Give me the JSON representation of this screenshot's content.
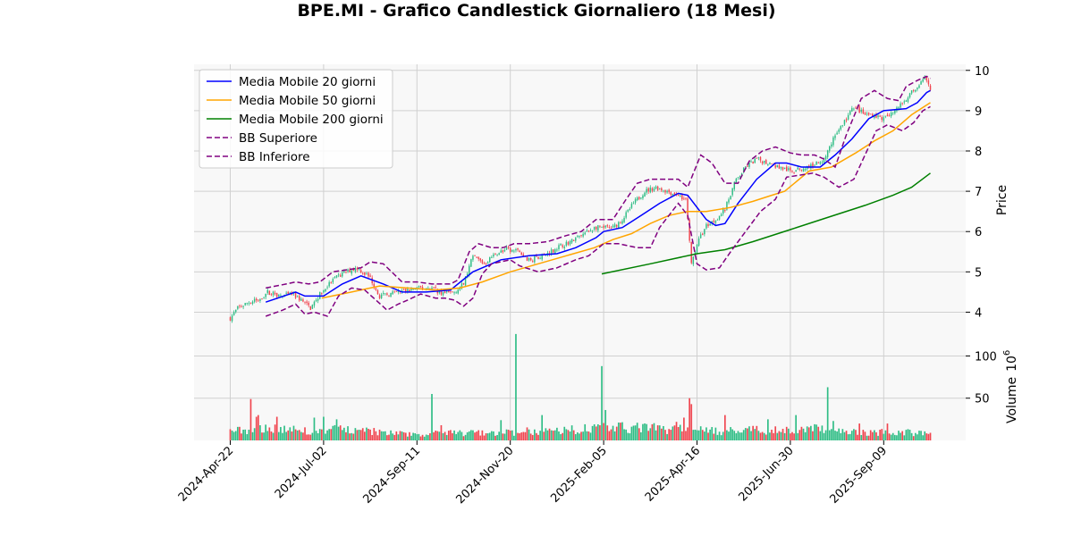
{
  "chart_data": {
    "type": "candlestick",
    "title": "BPE.MI - Grafico Candlestick Giornaliero (18 Mesi)",
    "ylabel": "Price",
    "volume_label": "Volume",
    "volume_exponent_label": "10",
    "volume_exponent_power": "6",
    "ylim": [
      3.5,
      10.15
    ],
    "volume_ylim": [
      0,
      128
    ],
    "price_ticks": [
      "4",
      "5",
      "6",
      "7",
      "8",
      "9",
      "10"
    ],
    "volume_ticks": [
      "50",
      "100"
    ],
    "x_ticks": [
      "2024-Apr-22",
      "2024-Jul-02",
      "2024-Sep-11",
      "2024-Nov-20",
      "2025-Feb-05",
      "2025-Apr-16",
      "2025-Jun-30",
      "2025-Sep-09"
    ],
    "x_tick_index": [
      0,
      50,
      100,
      150,
      200,
      250,
      300,
      350
    ],
    "n_days": 375,
    "grid": true,
    "legend_position": "top-left",
    "up_color": "#2ebd85",
    "down_color": "#f0454f",
    "series": [
      {
        "name": "Media Mobile 20 giorni",
        "color": "#0000ff",
        "style": "solid",
        "start": 19,
        "points": [
          [
            19,
            4.25
          ],
          [
            35,
            4.5
          ],
          [
            40,
            4.4
          ],
          [
            50,
            4.4
          ],
          [
            60,
            4.7
          ],
          [
            70,
            4.9
          ],
          [
            82,
            4.7
          ],
          [
            92,
            4.5
          ],
          [
            105,
            4.5
          ],
          [
            118,
            4.55
          ],
          [
            130,
            5.0
          ],
          [
            145,
            5.3
          ],
          [
            160,
            5.4
          ],
          [
            175,
            5.45
          ],
          [
            185,
            5.6
          ],
          [
            196,
            5.85
          ],
          [
            200,
            6.0
          ],
          [
            210,
            6.1
          ],
          [
            220,
            6.4
          ],
          [
            230,
            6.7
          ],
          [
            240,
            6.95
          ],
          [
            245,
            6.9
          ],
          [
            255,
            6.3
          ],
          [
            260,
            6.15
          ],
          [
            265,
            6.2
          ],
          [
            272,
            6.7
          ],
          [
            282,
            7.3
          ],
          [
            292,
            7.7
          ],
          [
            298,
            7.7
          ],
          [
            306,
            7.6
          ],
          [
            316,
            7.6
          ],
          [
            324,
            7.9
          ],
          [
            333,
            8.3
          ],
          [
            342,
            8.8
          ],
          [
            350,
            9.0
          ],
          [
            362,
            9.05
          ],
          [
            368,
            9.2
          ],
          [
            373,
            9.45
          ],
          [
            375,
            9.5
          ]
        ]
      },
      {
        "name": "Media Mobile 50 giorni",
        "color": "#ffa500",
        "style": "solid",
        "start": 49,
        "points": [
          [
            49,
            4.35
          ],
          [
            65,
            4.5
          ],
          [
            80,
            4.65
          ],
          [
            95,
            4.6
          ],
          [
            110,
            4.55
          ],
          [
            123,
            4.6
          ],
          [
            135,
            4.75
          ],
          [
            150,
            5.0
          ],
          [
            165,
            5.2
          ],
          [
            180,
            5.4
          ],
          [
            195,
            5.6
          ],
          [
            205,
            5.8
          ],
          [
            215,
            5.95
          ],
          [
            225,
            6.2
          ],
          [
            235,
            6.4
          ],
          [
            245,
            6.5
          ],
          [
            255,
            6.5
          ],
          [
            268,
            6.6
          ],
          [
            280,
            6.75
          ],
          [
            290,
            6.9
          ],
          [
            297,
            7.0
          ],
          [
            310,
            7.5
          ],
          [
            322,
            7.6
          ],
          [
            335,
            7.95
          ],
          [
            345,
            8.25
          ],
          [
            355,
            8.5
          ],
          [
            365,
            8.9
          ],
          [
            375,
            9.2
          ]
        ]
      },
      {
        "name": "Media Mobile 200 giorni",
        "color": "#008000",
        "style": "solid",
        "start": 199,
        "points": [
          [
            199,
            4.95
          ],
          [
            225,
            5.2
          ],
          [
            250,
            5.45
          ],
          [
            265,
            5.55
          ],
          [
            280,
            5.75
          ],
          [
            300,
            6.05
          ],
          [
            320,
            6.35
          ],
          [
            340,
            6.65
          ],
          [
            355,
            6.9
          ],
          [
            365,
            7.1
          ],
          [
            375,
            7.45
          ]
        ]
      },
      {
        "name": "BB Superiore",
        "color": "#800080",
        "style": "dashed",
        "start": 19,
        "points": [
          [
            19,
            4.6
          ],
          [
            30,
            4.7
          ],
          [
            35,
            4.75
          ],
          [
            42,
            4.7
          ],
          [
            48,
            4.75
          ],
          [
            55,
            5.0
          ],
          [
            62,
            5.05
          ],
          [
            70,
            5.1
          ],
          [
            75,
            5.25
          ],
          [
            82,
            5.2
          ],
          [
            92,
            4.75
          ],
          [
            100,
            4.75
          ],
          [
            108,
            4.7
          ],
          [
            118,
            4.7
          ],
          [
            122,
            4.8
          ],
          [
            128,
            5.5
          ],
          [
            133,
            5.7
          ],
          [
            140,
            5.6
          ],
          [
            146,
            5.6
          ],
          [
            152,
            5.7
          ],
          [
            160,
            5.7
          ],
          [
            170,
            5.75
          ],
          [
            180,
            5.9
          ],
          [
            188,
            6.0
          ],
          [
            196,
            6.3
          ],
          [
            205,
            6.3
          ],
          [
            212,
            6.8
          ],
          [
            218,
            7.2
          ],
          [
            225,
            7.3
          ],
          [
            230,
            7.3
          ],
          [
            240,
            7.3
          ],
          [
            245,
            7.1
          ],
          [
            252,
            7.9
          ],
          [
            258,
            7.7
          ],
          [
            265,
            7.2
          ],
          [
            272,
            7.2
          ],
          [
            278,
            7.75
          ],
          [
            285,
            8.0
          ],
          [
            292,
            8.1
          ],
          [
            300,
            7.95
          ],
          [
            306,
            7.9
          ],
          [
            313,
            7.9
          ],
          [
            318,
            7.8
          ],
          [
            324,
            7.6
          ],
          [
            330,
            8.4
          ],
          [
            338,
            9.3
          ],
          [
            345,
            9.5
          ],
          [
            352,
            9.3
          ],
          [
            358,
            9.25
          ],
          [
            362,
            9.6
          ],
          [
            368,
            9.75
          ],
          [
            373,
            9.85
          ],
          [
            375,
            9.8
          ]
        ]
      },
      {
        "name": "BB Inferiore",
        "color": "#800080",
        "style": "dashed",
        "start": 19,
        "points": [
          [
            19,
            3.9
          ],
          [
            28,
            4.05
          ],
          [
            35,
            4.2
          ],
          [
            40,
            3.95
          ],
          [
            45,
            4.0
          ],
          [
            52,
            3.9
          ],
          [
            58,
            4.4
          ],
          [
            65,
            4.6
          ],
          [
            72,
            4.55
          ],
          [
            78,
            4.3
          ],
          [
            84,
            4.05
          ],
          [
            90,
            4.2
          ],
          [
            95,
            4.3
          ],
          [
            102,
            4.45
          ],
          [
            110,
            4.35
          ],
          [
            115,
            4.35
          ],
          [
            120,
            4.3
          ],
          [
            125,
            4.15
          ],
          [
            130,
            4.35
          ],
          [
            135,
            4.95
          ],
          [
            140,
            5.2
          ],
          [
            150,
            5.3
          ],
          [
            155,
            5.15
          ],
          [
            165,
            5.0
          ],
          [
            175,
            5.1
          ],
          [
            185,
            5.3
          ],
          [
            192,
            5.4
          ],
          [
            200,
            5.7
          ],
          [
            208,
            5.7
          ],
          [
            218,
            5.6
          ],
          [
            225,
            5.6
          ],
          [
            230,
            6.1
          ],
          [
            240,
            6.7
          ],
          [
            245,
            6.4
          ],
          [
            250,
            5.2
          ],
          [
            255,
            5.05
          ],
          [
            262,
            5.1
          ],
          [
            268,
            5.5
          ],
          [
            276,
            6.0
          ],
          [
            284,
            6.5
          ],
          [
            292,
            6.8
          ],
          [
            298,
            7.35
          ],
          [
            305,
            7.4
          ],
          [
            312,
            7.45
          ],
          [
            318,
            7.35
          ],
          [
            326,
            7.1
          ],
          [
            334,
            7.3
          ],
          [
            340,
            7.9
          ],
          [
            346,
            8.5
          ],
          [
            352,
            8.65
          ],
          [
            360,
            8.5
          ],
          [
            366,
            8.7
          ],
          [
            371,
            9.0
          ],
          [
            375,
            9.1
          ]
        ]
      }
    ],
    "price_anchors": [
      [
        0,
        3.85
      ],
      [
        4,
        4.1
      ],
      [
        10,
        4.25
      ],
      [
        15,
        4.3
      ],
      [
        20,
        4.5
      ],
      [
        28,
        4.4
      ],
      [
        33,
        4.45
      ],
      [
        38,
        4.3
      ],
      [
        43,
        4.1
      ],
      [
        48,
        4.45
      ],
      [
        55,
        4.8
      ],
      [
        62,
        5.0
      ],
      [
        68,
        5.1
      ],
      [
        75,
        4.85
      ],
      [
        80,
        4.4
      ],
      [
        85,
        4.45
      ],
      [
        90,
        4.5
      ],
      [
        96,
        4.55
      ],
      [
        102,
        4.6
      ],
      [
        108,
        4.6
      ],
      [
        114,
        4.45
      ],
      [
        120,
        4.5
      ],
      [
        125,
        4.7
      ],
      [
        130,
        5.4
      ],
      [
        136,
        5.2
      ],
      [
        142,
        5.45
      ],
      [
        148,
        5.55
      ],
      [
        154,
        5.5
      ],
      [
        160,
        5.3
      ],
      [
        168,
        5.4
      ],
      [
        175,
        5.6
      ],
      [
        182,
        5.75
      ],
      [
        188,
        5.9
      ],
      [
        195,
        6.1
      ],
      [
        200,
        6.1
      ],
      [
        205,
        6.1
      ],
      [
        210,
        6.3
      ],
      [
        216,
        6.7
      ],
      [
        222,
        7.0
      ],
      [
        228,
        7.1
      ],
      [
        234,
        7.0
      ],
      [
        240,
        6.9
      ],
      [
        244,
        6.8
      ],
      [
        247,
        5.2
      ],
      [
        250,
        5.7
      ],
      [
        255,
        6.15
      ],
      [
        260,
        6.3
      ],
      [
        265,
        6.55
      ],
      [
        270,
        7.2
      ],
      [
        276,
        7.6
      ],
      [
        282,
        7.8
      ],
      [
        288,
        7.7
      ],
      [
        294,
        7.6
      ],
      [
        300,
        7.5
      ],
      [
        306,
        7.55
      ],
      [
        312,
        7.65
      ],
      [
        318,
        7.8
      ],
      [
        324,
        8.4
      ],
      [
        330,
        8.8
      ],
      [
        334,
        9.1
      ],
      [
        340,
        8.9
      ],
      [
        344,
        8.9
      ],
      [
        350,
        8.8
      ],
      [
        356,
        9.0
      ],
      [
        362,
        9.3
      ],
      [
        368,
        9.6
      ],
      [
        372,
        9.8
      ],
      [
        375,
        9.5
      ]
    ],
    "volume_anchors": [
      [
        0,
        11
      ],
      [
        20,
        14
      ],
      [
        40,
        12
      ],
      [
        60,
        13
      ],
      [
        80,
        10
      ],
      [
        100,
        7
      ],
      [
        120,
        9
      ],
      [
        140,
        8
      ],
      [
        160,
        11
      ],
      [
        180,
        12
      ],
      [
        200,
        15
      ],
      [
        220,
        15
      ],
      [
        240,
        13
      ],
      [
        260,
        11
      ],
      [
        280,
        12
      ],
      [
        300,
        12
      ],
      [
        320,
        14
      ],
      [
        340,
        9
      ],
      [
        360,
        10
      ],
      [
        375,
        8
      ]
    ],
    "volume_spikes": [
      [
        11,
        49
      ],
      [
        14,
        28
      ],
      [
        15,
        30
      ],
      [
        25,
        28
      ],
      [
        45,
        27
      ],
      [
        50,
        28
      ],
      [
        57,
        25
      ],
      [
        108,
        55
      ],
      [
        113,
        18
      ],
      [
        130,
        12
      ],
      [
        145,
        24
      ],
      [
        153,
        126
      ],
      [
        167,
        30
      ],
      [
        199,
        88
      ],
      [
        201,
        36
      ],
      [
        239,
        22
      ],
      [
        243,
        27
      ],
      [
        246,
        50
      ],
      [
        247,
        43
      ],
      [
        265,
        30
      ],
      [
        288,
        25
      ],
      [
        303,
        30
      ],
      [
        320,
        63
      ],
      [
        323,
        23
      ],
      [
        337,
        20
      ],
      [
        352,
        20
      ]
    ]
  }
}
